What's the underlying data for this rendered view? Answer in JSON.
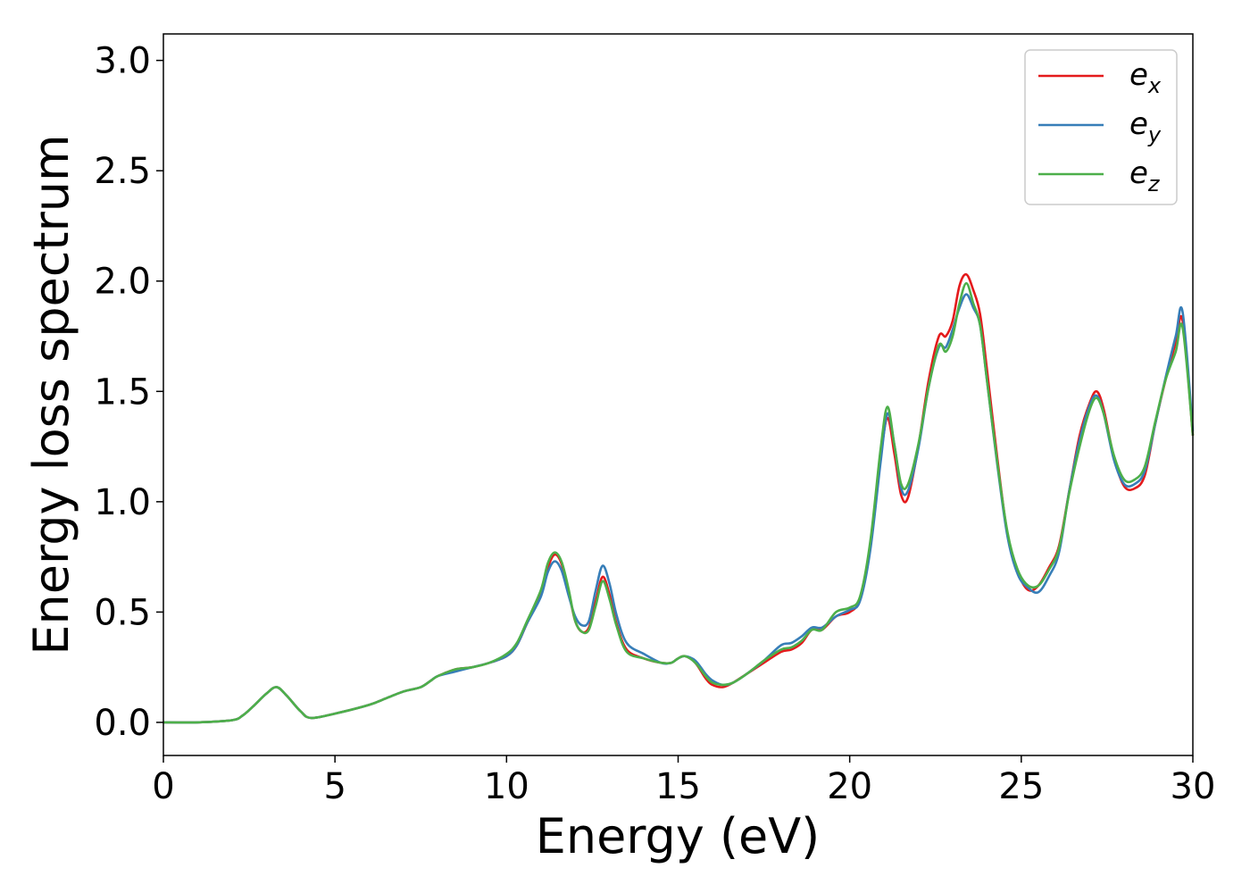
{
  "chart_data": {
    "type": "line",
    "title": "",
    "xlabel": "Energy (eV)",
    "ylabel": "Energy loss spectrum",
    "xlim": [
      0,
      30
    ],
    "ylim": [
      -0.15,
      3.12
    ],
    "xticks": [
      "0",
      "5",
      "10",
      "15",
      "20",
      "25",
      "30"
    ],
    "yticks": [
      "0.0",
      "0.5",
      "1.0",
      "1.5",
      "2.0",
      "2.5",
      "3.0"
    ],
    "grid": false,
    "legend_position": "top-right",
    "x": [
      0,
      1,
      2,
      2.3,
      2.6,
      3,
      3.3,
      3.6,
      4,
      4.3,
      5,
      6,
      6.5,
      7,
      7.5,
      7.8,
      8,
      8.5,
      9,
      9.5,
      10,
      10.3,
      10.6,
      11,
      11.2,
      11.4,
      11.6,
      11.8,
      12,
      12.2,
      12.4,
      12.6,
      12.8,
      13,
      13.2,
      13.5,
      14,
      14.5,
      14.8,
      15,
      15.2,
      15.5,
      15.8,
      16,
      16.3,
      16.6,
      17,
      17.5,
      18,
      18.3,
      18.6,
      18.9,
      19.2,
      19.6,
      20,
      20.3,
      20.6,
      20.9,
      21.1,
      21.3,
      21.5,
      21.7,
      22,
      22.3,
      22.6,
      22.8,
      23,
      23.2,
      23.4,
      23.6,
      23.8,
      24,
      24.3,
      24.6,
      24.9,
      25.2,
      25.5,
      25.8,
      26.1,
      26.4,
      26.7,
      27,
      27.2,
      27.4,
      27.7,
      28,
      28.3,
      28.6,
      28.9,
      29.2,
      29.5,
      29.7,
      30
    ],
    "series": [
      {
        "name": "x",
        "color": "#e41a1c",
        "values": [
          0,
          0,
          0.01,
          0.03,
          0.07,
          0.13,
          0.16,
          0.12,
          0.05,
          0.02,
          0.04,
          0.08,
          0.11,
          0.14,
          0.16,
          0.19,
          0.21,
          0.24,
          0.25,
          0.27,
          0.3,
          0.35,
          0.45,
          0.58,
          0.7,
          0.76,
          0.72,
          0.6,
          0.46,
          0.41,
          0.43,
          0.55,
          0.66,
          0.58,
          0.45,
          0.33,
          0.29,
          0.27,
          0.27,
          0.29,
          0.3,
          0.27,
          0.2,
          0.17,
          0.16,
          0.18,
          0.22,
          0.27,
          0.32,
          0.33,
          0.36,
          0.42,
          0.42,
          0.48,
          0.5,
          0.56,
          0.8,
          1.2,
          1.38,
          1.22,
          1.03,
          1.02,
          1.25,
          1.55,
          1.75,
          1.75,
          1.82,
          1.98,
          2.03,
          1.96,
          1.85,
          1.6,
          1.2,
          0.85,
          0.68,
          0.6,
          0.62,
          0.7,
          0.8,
          1.05,
          1.3,
          1.45,
          1.5,
          1.42,
          1.2,
          1.07,
          1.06,
          1.12,
          1.35,
          1.55,
          1.72,
          1.82,
          1.3
        ]
      },
      {
        "name": "y",
        "color": "#377eb8",
        "values": [
          0,
          0,
          0.01,
          0.03,
          0.07,
          0.13,
          0.16,
          0.12,
          0.05,
          0.02,
          0.04,
          0.08,
          0.11,
          0.14,
          0.16,
          0.19,
          0.21,
          0.23,
          0.25,
          0.27,
          0.3,
          0.35,
          0.45,
          0.57,
          0.68,
          0.73,
          0.69,
          0.58,
          0.48,
          0.44,
          0.46,
          0.6,
          0.71,
          0.63,
          0.49,
          0.36,
          0.31,
          0.27,
          0.27,
          0.29,
          0.3,
          0.28,
          0.22,
          0.19,
          0.17,
          0.18,
          0.22,
          0.28,
          0.35,
          0.36,
          0.39,
          0.43,
          0.43,
          0.48,
          0.51,
          0.55,
          0.78,
          1.18,
          1.4,
          1.26,
          1.06,
          1.05,
          1.24,
          1.52,
          1.7,
          1.7,
          1.78,
          1.88,
          1.94,
          1.88,
          1.8,
          1.55,
          1.17,
          0.84,
          0.67,
          0.61,
          0.59,
          0.66,
          0.77,
          1.05,
          1.28,
          1.44,
          1.48,
          1.4,
          1.19,
          1.08,
          1.08,
          1.14,
          1.35,
          1.56,
          1.75,
          1.86,
          1.32
        ]
      },
      {
        "name": "z",
        "color": "#4daf4a",
        "values": [
          0,
          0,
          0.01,
          0.03,
          0.07,
          0.13,
          0.16,
          0.12,
          0.05,
          0.02,
          0.04,
          0.08,
          0.11,
          0.14,
          0.16,
          0.19,
          0.21,
          0.24,
          0.25,
          0.27,
          0.31,
          0.36,
          0.46,
          0.6,
          0.72,
          0.77,
          0.73,
          0.61,
          0.46,
          0.41,
          0.42,
          0.53,
          0.64,
          0.56,
          0.44,
          0.32,
          0.29,
          0.27,
          0.27,
          0.29,
          0.3,
          0.27,
          0.21,
          0.18,
          0.17,
          0.18,
          0.22,
          0.28,
          0.33,
          0.34,
          0.37,
          0.42,
          0.42,
          0.5,
          0.52,
          0.57,
          0.82,
          1.24,
          1.43,
          1.26,
          1.08,
          1.08,
          1.26,
          1.52,
          1.71,
          1.68,
          1.75,
          1.9,
          1.99,
          1.9,
          1.8,
          1.55,
          1.18,
          0.86,
          0.69,
          0.62,
          0.62,
          0.69,
          0.79,
          1.04,
          1.25,
          1.42,
          1.47,
          1.4,
          1.21,
          1.1,
          1.1,
          1.16,
          1.36,
          1.55,
          1.68,
          1.79,
          1.3
        ]
      }
    ],
    "legend": [
      {
        "base": "e",
        "sub": "x",
        "color": "#e41a1c"
      },
      {
        "base": "e",
        "sub": "y",
        "color": "#377eb8"
      },
      {
        "base": "e",
        "sub": "z",
        "color": "#4daf4a"
      }
    ]
  }
}
